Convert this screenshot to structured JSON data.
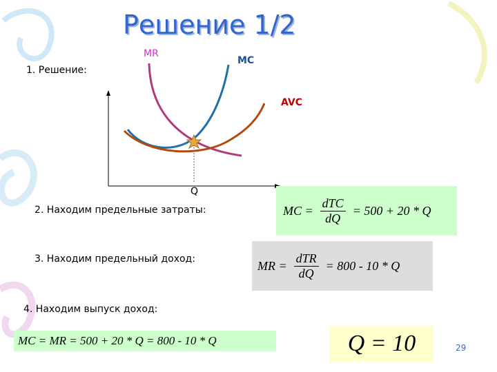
{
  "header": {
    "title": "Решение 1/2"
  },
  "steps": [
    {
      "text": "1. Решение:"
    },
    {
      "text": "2. Находим предельные затраты:"
    },
    {
      "text": "3. Находим предельный доход:"
    },
    {
      "text": "4. Находим выпуск доход:"
    }
  ],
  "graph": {
    "labels": {
      "mr": "MR",
      "mc": "MC",
      "avc": "AVC",
      "q": "Q"
    }
  },
  "formulas": [
    {
      "lhs": "MC =",
      "numerator": "dTC",
      "denominator": "dQ",
      "rhs": "= 500 + 20 * Q"
    },
    {
      "lhs": "MR =",
      "numerator": "dTR",
      "denominator": "dQ",
      "rhs": "= 800 - 10 * Q"
    },
    {
      "text": "MC = MR = 500 + 20 * Q = 800 - 10 * Q"
    },
    {
      "text": "Q = 10"
    }
  ],
  "footer": {
    "page_number": "29"
  }
}
